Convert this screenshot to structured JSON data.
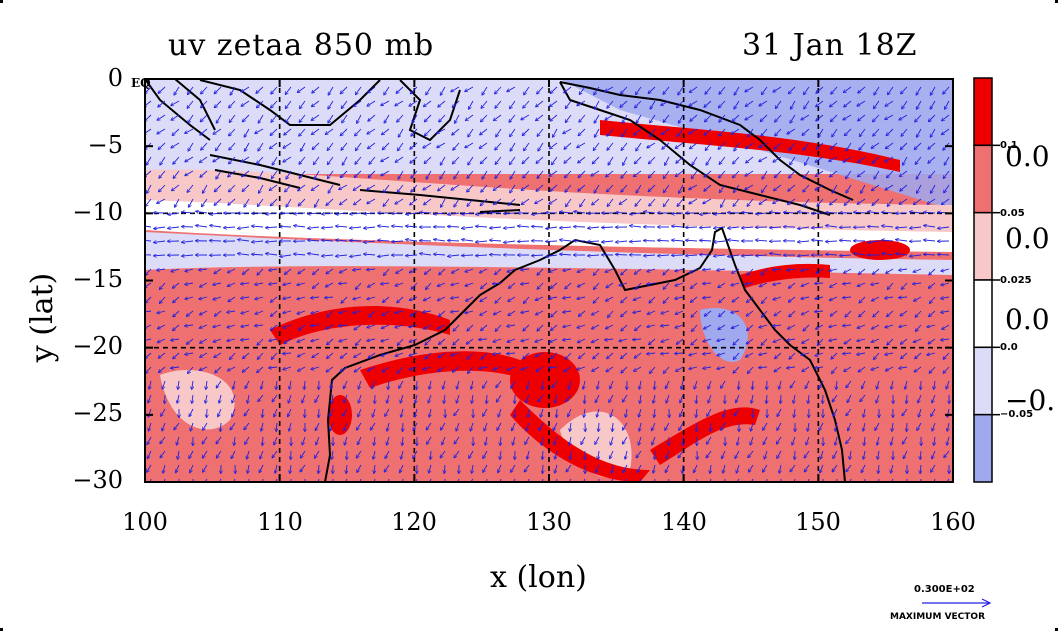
{
  "title_left": "uv zetaa 850 mb",
  "title_right": "31 Jan 18Z",
  "x_axis": {
    "label": "x (lon)",
    "ticks": [
      "100",
      "110",
      "120",
      "130",
      "140",
      "150",
      "160"
    ],
    "range": [
      100,
      160
    ]
  },
  "y_axis": {
    "label": "y (lat)",
    "ticks": [
      "0",
      "−5",
      "−10",
      "−15",
      "−20",
      "−25",
      "−30"
    ],
    "range": [
      -30,
      0
    ]
  },
  "eq_label": "EQ",
  "colorbar": {
    "big_labels": [
      "0.0",
      "0.0",
      "0.0",
      "−0."
    ],
    "small_labels": [
      "0.1",
      "0.05",
      "0.025",
      "0.0",
      "−0.05"
    ],
    "colors": [
      "#ee0000",
      "#ee7070",
      "#f8c8c8",
      "#ffffff",
      "#dcdcf8",
      "#a0a8ee"
    ]
  },
  "max_vector": {
    "value": "0.300E+02",
    "label": "MAXIMUM VECTOR"
  },
  "vector_color": "#2020e0",
  "coast_color": "#000000"
}
